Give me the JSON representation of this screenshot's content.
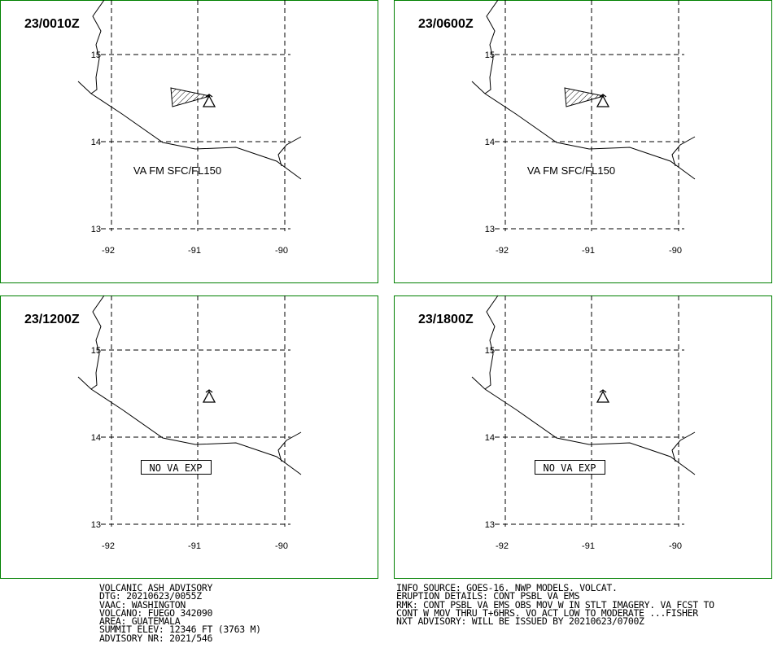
{
  "panels": [
    {
      "time": "23/0010Z",
      "note": "VA FM SFC/FL150",
      "ash": true,
      "boxed": false
    },
    {
      "time": "23/0600Z",
      "note": "VA FM SFC/FL150",
      "ash": true,
      "boxed": false
    },
    {
      "time": "23/1200Z",
      "note": "NO VA EXP",
      "ash": false,
      "boxed": true
    },
    {
      "time": "23/1800Z",
      "note": "NO VA EXP",
      "ash": false,
      "boxed": true
    }
  ],
  "lat_labels": [
    "15",
    "14",
    "13"
  ],
  "lon_labels": [
    "-92",
    "-91",
    "-90"
  ],
  "advisory_left": [
    "VOLCANIC ASH ADVISORY",
    "DTG: 20210623/0055Z",
    "VAAC: WASHINGTON",
    "VOLCANO: FUEGO 342090",
    "AREA: GUATEMALA",
    "SUMMIT ELEV: 12346 FT (3763 M)",
    "ADVISORY NR: 2021/546"
  ],
  "advisory_right": [
    "INFO SOURCE: GOES-16. NWP MODELS. VOLCAT.",
    "ERUPTION DETAILS: CONT PSBL VA EMS",
    "RMK: CONT PSBL VA EMS OBS MOV W IN STLT IMAGERY. VA FCST TO",
    "CONT W MOV THRU T+6HRS. VO ACT LOW TO MODERATE ...FISHER",
    "NXT ADVISORY: WILL BE ISSUED BY 20210623/0700Z"
  ]
}
